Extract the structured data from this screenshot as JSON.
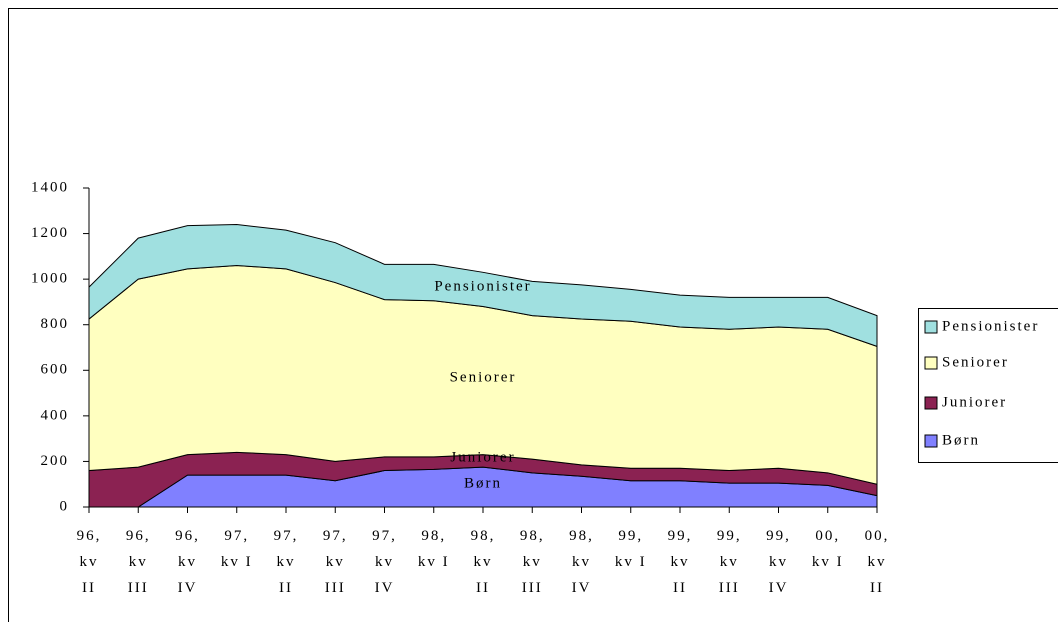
{
  "chart_data": {
    "type": "stacked_area",
    "categories": [
      "96, kv II",
      "96, kv III",
      "96, kv IV",
      "97, kv I",
      "97, kv II",
      "97, kv III",
      "97, kv IV",
      "98, kv I",
      "98, kv II",
      "98, kv III",
      "98, kv IV",
      "99, kv I",
      "99, kv II",
      "99, kv III",
      "99, kv IV",
      "00, kv I",
      "00, kv II"
    ],
    "series": [
      {
        "name": "Børn",
        "color": "#8080ff",
        "values": [
          0,
          0,
          140,
          140,
          140,
          115,
          160,
          165,
          175,
          150,
          135,
          115,
          115,
          105,
          105,
          95,
          50
        ]
      },
      {
        "name": "Juniorer",
        "color": "#8b2252",
        "values": [
          160,
          175,
          90,
          100,
          90,
          85,
          60,
          55,
          55,
          60,
          50,
          55,
          55,
          55,
          65,
          55,
          50
        ]
      },
      {
        "name": "Seniorer",
        "color": "#ffffc0",
        "values": [
          665,
          825,
          815,
          820,
          815,
          785,
          690,
          685,
          650,
          630,
          640,
          645,
          620,
          620,
          620,
          630,
          605
        ]
      },
      {
        "name": "Pensionister",
        "color": "#a0e0e0",
        "values": [
          140,
          180,
          190,
          180,
          170,
          175,
          155,
          160,
          150,
          150,
          150,
          140,
          140,
          140,
          130,
          140,
          135
        ]
      }
    ],
    "ylim": [
      0,
      1400
    ],
    "yticks": [
      0,
      200,
      400,
      600,
      800,
      1000,
      1200,
      1400
    ]
  }
}
